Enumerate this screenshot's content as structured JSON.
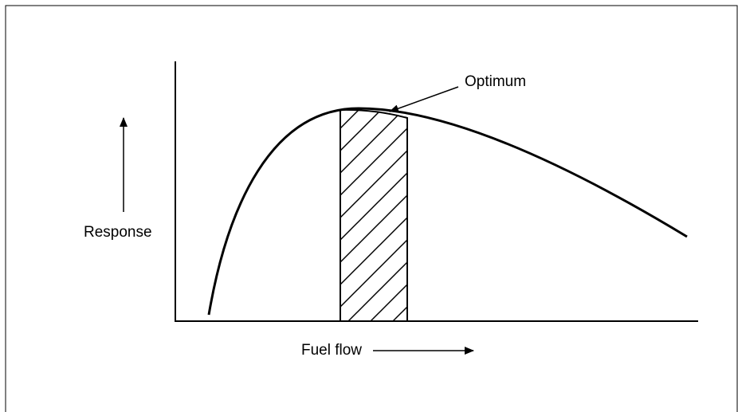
{
  "labels": {
    "optimum": "Optimum",
    "y_axis": "Response",
    "x_axis": "Fuel flow"
  }
}
